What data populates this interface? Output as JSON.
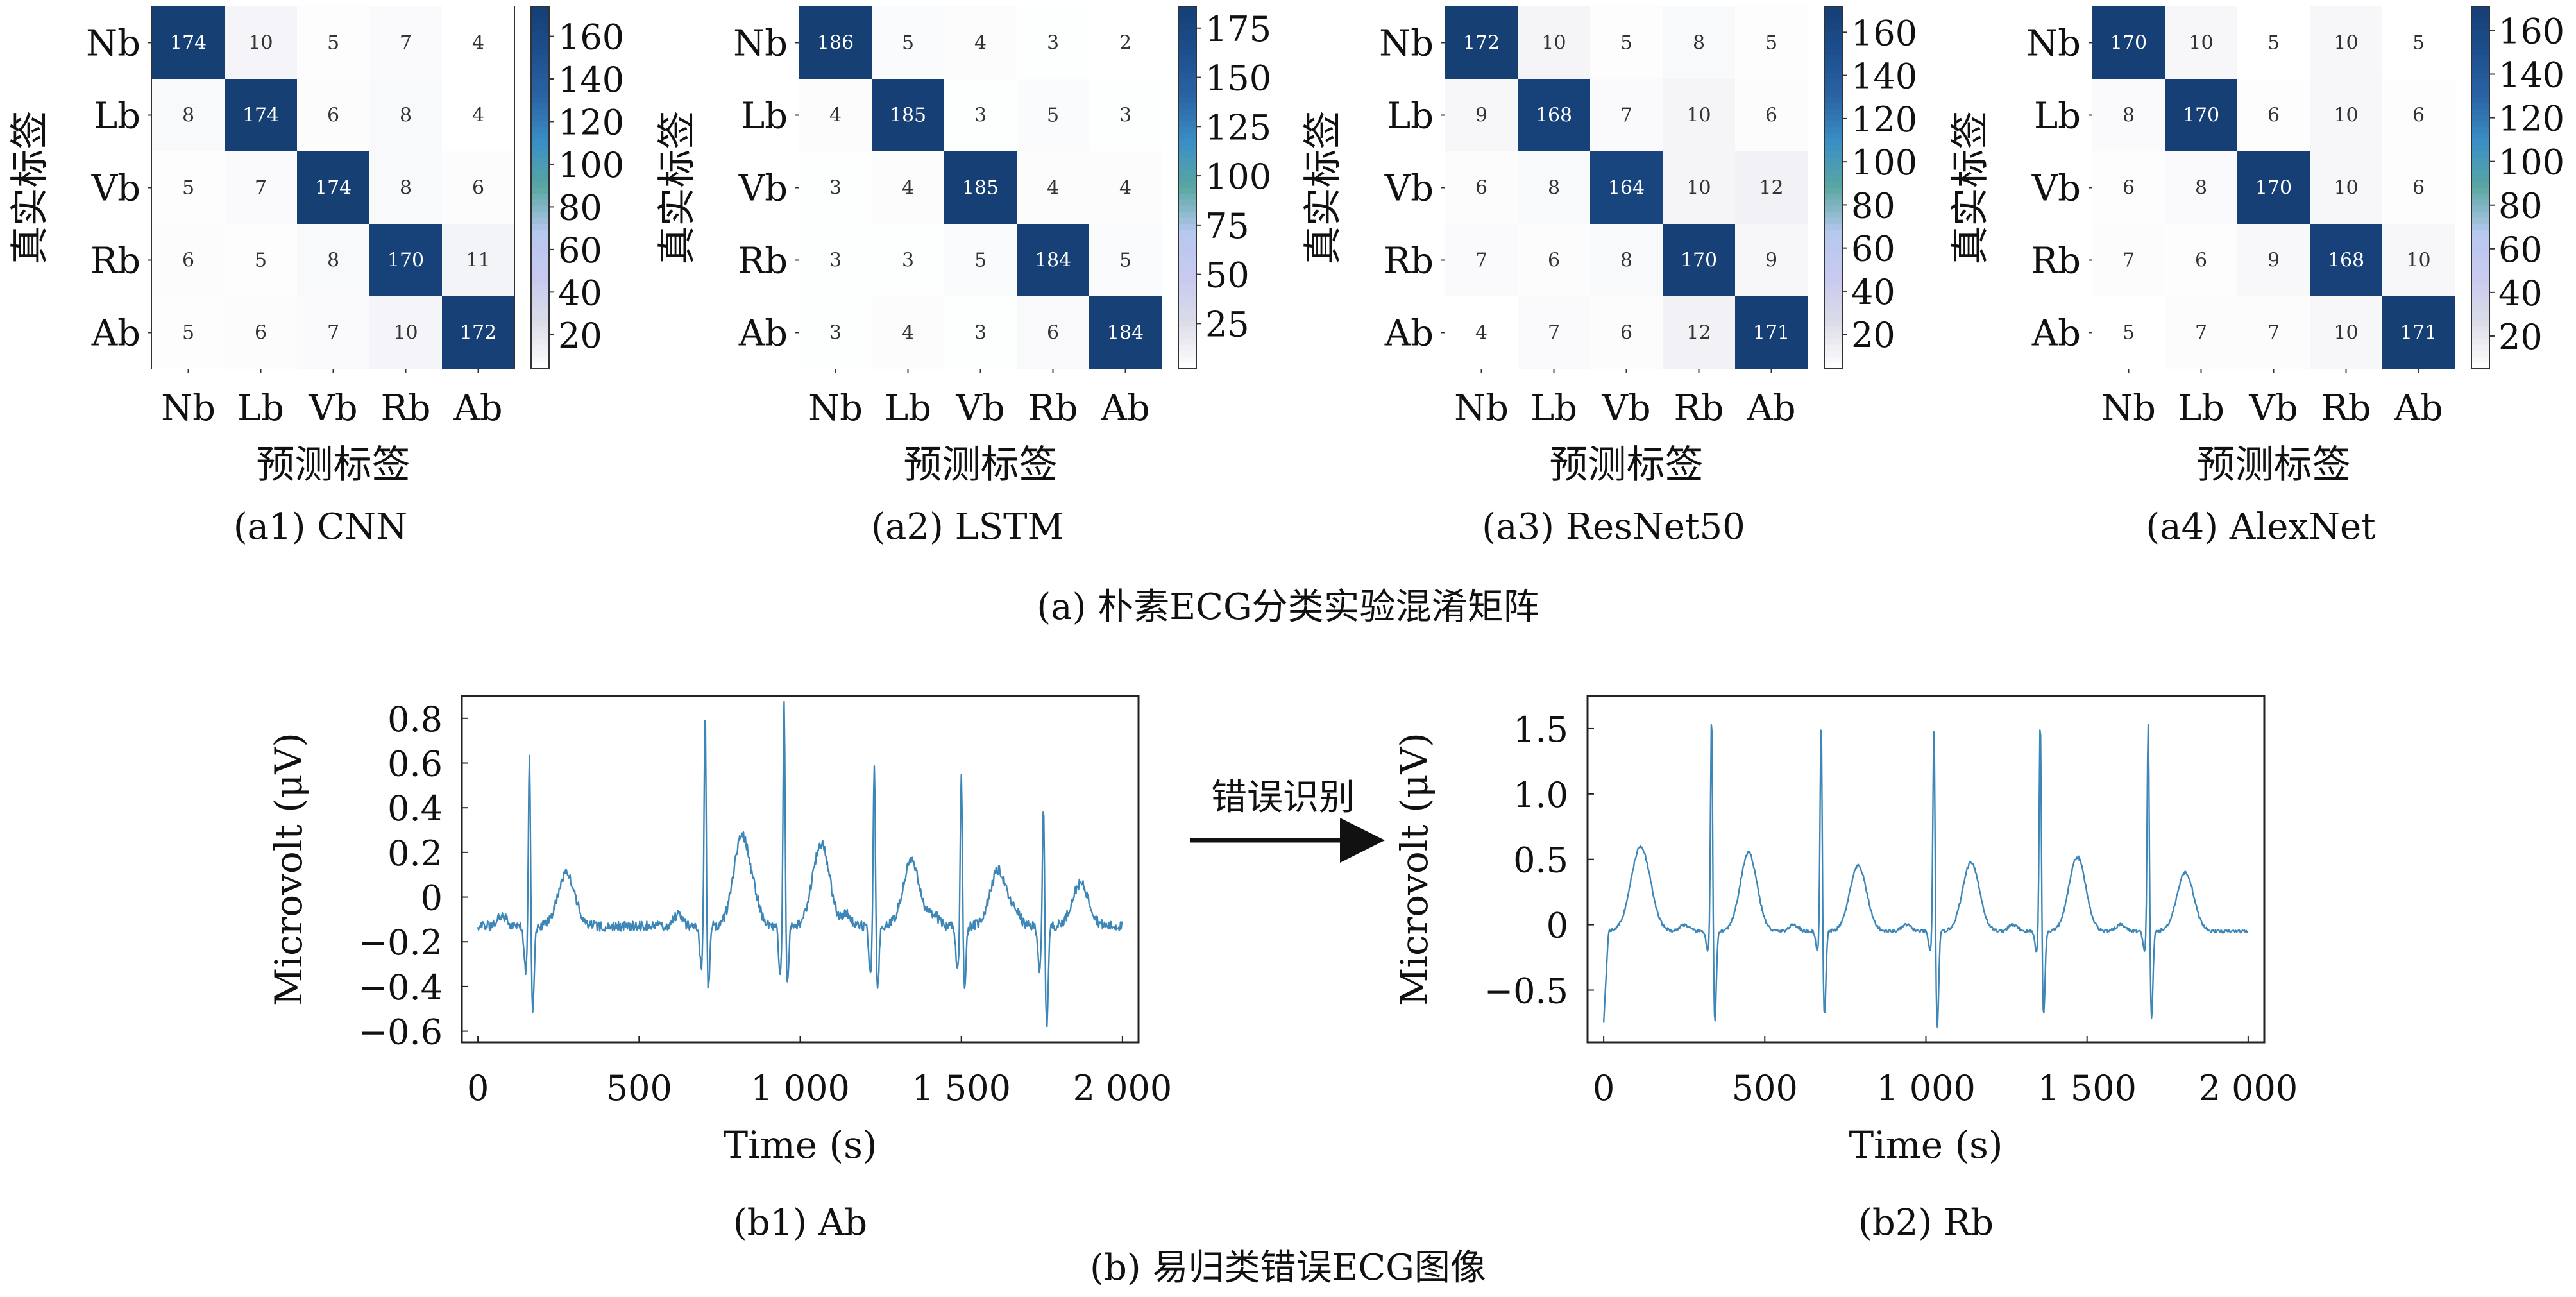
{
  "chart_data": {
    "type": "figure",
    "confusion_matrices": {
      "caption": "(a) 朴素ECG分类实验混淆矩阵",
      "classes": [
        "Nb",
        "Lb",
        "Vb",
        "Rb",
        "Ab"
      ],
      "xlabel": "预测标签",
      "ylabel": "真实标签",
      "colormap": [
        "#ffffff",
        "#dcdde8",
        "#c9c9f0",
        "#b6c8ef",
        "#5aa7a2",
        "#3a8fc5",
        "#2a64a4",
        "#1d4f8e",
        "#163f74"
      ],
      "panels": [
        {
          "type": "heatmap",
          "subcaption": "(a1) CNN",
          "matrix": [
            [
              174,
              10,
              5,
              7,
              4
            ],
            [
              8,
              174,
              6,
              8,
              4
            ],
            [
              5,
              7,
              174,
              8,
              6
            ],
            [
              6,
              5,
              8,
              170,
              11
            ],
            [
              5,
              6,
              7,
              10,
              172
            ]
          ],
          "colorbar_ticks": [
            "20",
            "40",
            "60",
            "80",
            "100",
            "120",
            "140",
            "160"
          ],
          "colorbar_values": [
            20,
            40,
            60,
            80,
            100,
            120,
            140,
            160
          ],
          "range": [
            4,
            174
          ]
        },
        {
          "type": "heatmap",
          "subcaption": "(a2) LSTM",
          "matrix": [
            [
              186,
              5,
              4,
              3,
              2
            ],
            [
              4,
              185,
              3,
              5,
              3
            ],
            [
              3,
              4,
              185,
              4,
              4
            ],
            [
              3,
              3,
              5,
              184,
              5
            ],
            [
              3,
              4,
              3,
              6,
              184
            ]
          ],
          "colorbar_ticks": [
            "25",
            "50",
            "75",
            "100",
            "125",
            "150",
            "175"
          ],
          "colorbar_values": [
            25,
            50,
            75,
            100,
            125,
            150,
            175
          ],
          "range": [
            2,
            186
          ]
        },
        {
          "type": "heatmap",
          "subcaption": "(a3) ResNet50",
          "matrix": [
            [
              172,
              10,
              5,
              8,
              5
            ],
            [
              9,
              168,
              7,
              10,
              6
            ],
            [
              6,
              8,
              164,
              10,
              12
            ],
            [
              7,
              6,
              8,
              170,
              9
            ],
            [
              4,
              7,
              6,
              12,
              171
            ]
          ],
          "colorbar_ticks": [
            "20",
            "40",
            "60",
            "80",
            "100",
            "120",
            "140",
            "160"
          ],
          "colorbar_values": [
            20,
            40,
            60,
            80,
            100,
            120,
            140,
            160
          ],
          "range": [
            4,
            172
          ]
        },
        {
          "type": "heatmap",
          "subcaption": "(a4) AlexNet",
          "matrix": [
            [
              170,
              10,
              5,
              10,
              5
            ],
            [
              8,
              170,
              6,
              10,
              6
            ],
            [
              6,
              8,
              170,
              10,
              6
            ],
            [
              7,
              6,
              9,
              168,
              10
            ],
            [
              5,
              7,
              7,
              10,
              171
            ]
          ],
          "colorbar_ticks": [
            "20",
            "40",
            "60",
            "80",
            "100",
            "120",
            "140",
            "160"
          ],
          "colorbar_values": [
            20,
            40,
            60,
            80,
            100,
            120,
            140,
            160
          ],
          "range": [
            5,
            171
          ]
        }
      ]
    },
    "ecg": {
      "caption": "(b) 易归类错误ECG图像",
      "arrow_label": "错误识别",
      "line_color": "#3d86b8",
      "panels": [
        {
          "type": "line",
          "subcaption": "(b1) Ab",
          "xlabel": "Time (s)",
          "ylabel": "Microvolt (μV)",
          "xlim": [
            -50,
            2050
          ],
          "ylim": [
            -0.65,
            0.9
          ],
          "xticks": [
            0,
            500,
            1000,
            1500,
            2000
          ],
          "xtick_labels": [
            "0",
            "500",
            "1 000",
            "1 500",
            "2 000"
          ],
          "yticks": [
            -0.6,
            -0.4,
            -0.2,
            0,
            0.2,
            0.4,
            0.6,
            0.8
          ],
          "ytick_labels": [
            "−0.6",
            "−0.4",
            "−0.2",
            "0",
            "0.2",
            "0.4",
            "0.6",
            "0.8"
          ],
          "baseline": -0.13,
          "noise": 0.022,
          "beats": [
            {
              "t": 160,
              "r": 0.68,
              "q": -0.2,
              "s": -0.5,
              "tw": 0.11
            },
            {
              "t": 705,
              "r": 0.86,
              "q": -0.18,
              "s": -0.42,
              "tw": 0.28
            },
            {
              "t": 950,
              "r": 0.9,
              "q": -0.2,
              "s": -0.38,
              "tw": 0.24
            },
            {
              "t": 1230,
              "r": 0.63,
              "q": -0.2,
              "s": -0.42,
              "tw": 0.16
            },
            {
              "t": 1500,
              "r": 0.58,
              "q": -0.2,
              "s": -0.4,
              "tw": 0.12
            },
            {
              "t": 1755,
              "r": 0.45,
              "q": -0.2,
              "s": -0.58,
              "tw": 0.06
            }
          ]
        },
        {
          "type": "line",
          "subcaption": "(b2) Rb",
          "xlabel": "Time (s)",
          "ylabel": "Microvolt (μV)",
          "xlim": [
            -50,
            2050
          ],
          "ylim": [
            -0.9,
            1.75
          ],
          "xticks": [
            0,
            500,
            1000,
            1500,
            2000
          ],
          "xtick_labels": [
            "0",
            "500",
            "1 000",
            "1 500",
            "2 000"
          ],
          "yticks": [
            -0.5,
            0,
            0.5,
            1.0,
            1.5
          ],
          "ytick_labels": [
            "−0.5",
            "0",
            "0.5",
            "1.0",
            "1.5"
          ],
          "baseline": -0.05,
          "noise": 0.012,
          "start_dip": -0.75,
          "beats": [
            {
              "t": 335,
              "r": 1.65,
              "q": -0.15,
              "s": -0.75,
              "tw": 0.55
            },
            {
              "t": 675,
              "r": 1.62,
              "q": -0.15,
              "s": -0.7,
              "tw": 0.45
            },
            {
              "t": 1025,
              "r": 1.6,
              "q": -0.15,
              "s": -0.8,
              "tw": 0.48
            },
            {
              "t": 1355,
              "r": 1.62,
              "q": -0.15,
              "s": -0.7,
              "tw": 0.52
            },
            {
              "t": 1690,
              "r": 1.6,
              "q": -0.15,
              "s": -0.72,
              "tw": 0.4
            }
          ],
          "extra_t_wave": {
            "t": 115,
            "amp": 0.6
          }
        }
      ]
    }
  }
}
